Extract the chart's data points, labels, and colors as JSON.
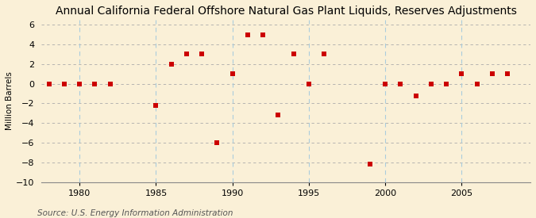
{
  "title": "Annual California Federal Offshore Natural Gas Plant Liquids, Reserves Adjustments",
  "ylabel": "Million Barrels",
  "source": "Source: U.S. Energy Information Administration",
  "years": [
    1978,
    1979,
    1980,
    1981,
    1982,
    1985,
    1986,
    1987,
    1988,
    1989,
    1990,
    1991,
    1992,
    1993,
    1994,
    1995,
    1996,
    1999,
    2000,
    2001,
    2002,
    2003,
    2004,
    2005,
    2006,
    2007,
    2008
  ],
  "values": [
    0,
    0,
    0,
    0,
    0,
    -2.2,
    2.0,
    3.0,
    3.0,
    -6.0,
    1.0,
    5.0,
    5.0,
    -3.2,
    3.0,
    0,
    3.0,
    -8.2,
    0,
    0,
    -1.2,
    0,
    0,
    1.0,
    0,
    1.0,
    1.0
  ],
  "xlim": [
    1977.5,
    2009.5
  ],
  "ylim": [
    -10,
    6.5
  ],
  "yticks": [
    -10,
    -8,
    -6,
    -4,
    -2,
    0,
    2,
    4,
    6
  ],
  "xticks": [
    1980,
    1985,
    1990,
    1995,
    2000,
    2005
  ],
  "bg_color": "#faf0d7",
  "marker_color": "#cc0000",
  "h_grid_color": "#aaaaaa",
  "v_grid_color": "#aaccdd",
  "title_fontsize": 10,
  "label_fontsize": 7.5,
  "tick_fontsize": 8,
  "source_fontsize": 7.5
}
